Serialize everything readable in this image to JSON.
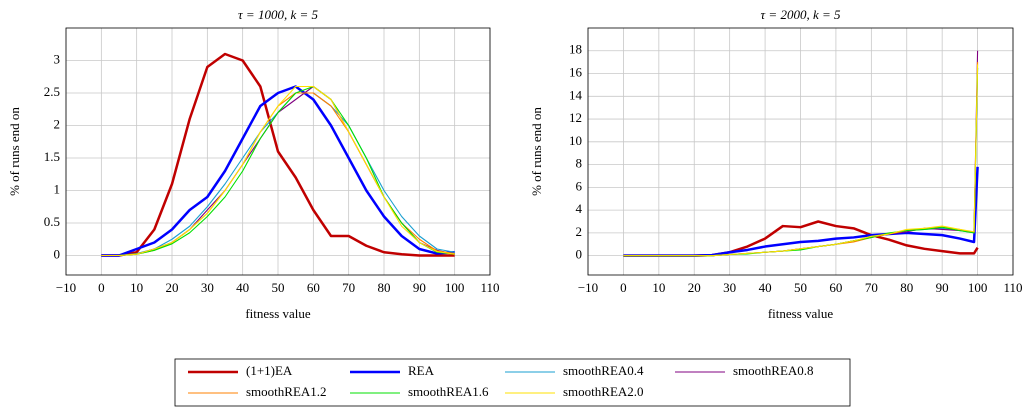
{
  "chart_data": [
    {
      "type": "line",
      "title": "τ = 1000, k = 5",
      "x_label": "fitness value",
      "y_label": "% of runs end on",
      "x": [
        0,
        5,
        10,
        15,
        20,
        25,
        30,
        35,
        40,
        45,
        50,
        55,
        60,
        65,
        70,
        75,
        80,
        85,
        90,
        95,
        100
      ],
      "xlim": [
        -10,
        110
      ],
      "ylim": [
        -0.3,
        3.5
      ],
      "grid": true,
      "xticks": [
        {
          "value": -10,
          "label": "−10"
        },
        0,
        10,
        20,
        30,
        40,
        50,
        60,
        70,
        80,
        90,
        100,
        110
      ],
      "yticks": [
        0,
        0.5,
        1,
        1.5,
        2,
        2.5,
        3
      ],
      "series": [
        {
          "name": "(1+1)EA",
          "color": "#c00000",
          "values": [
            0,
            0,
            0.05,
            0.4,
            1.1,
            2.1,
            2.9,
            3.1,
            3.0,
            2.6,
            1.6,
            1.2,
            0.7,
            0.3,
            0.3,
            0.15,
            0.05,
            0.02,
            0,
            0,
            0
          ]
        },
        {
          "name": "REA",
          "color": "#0000ff",
          "values": [
            0,
            0,
            0.1,
            0.2,
            0.4,
            0.7,
            0.9,
            1.3,
            1.8,
            2.3,
            2.5,
            2.6,
            2.4,
            2.0,
            1.5,
            1.0,
            0.6,
            0.3,
            0.1,
            0.03,
            0.05
          ]
        },
        {
          "name": "smoothREA0.4",
          "color": "#1a9fd0",
          "values": [
            0,
            0,
            0.03,
            0.1,
            0.25,
            0.45,
            0.75,
            1.1,
            1.5,
            1.9,
            2.2,
            2.5,
            2.5,
            2.3,
            2.0,
            1.5,
            1.0,
            0.6,
            0.3,
            0.1,
            0.05
          ]
        },
        {
          "name": "smoothREA0.8",
          "color": "#800080",
          "values": [
            0,
            0,
            0.02,
            0.1,
            0.2,
            0.4,
            0.7,
            1.0,
            1.4,
            1.8,
            2.2,
            2.4,
            2.6,
            2.4,
            1.9,
            1.4,
            0.9,
            0.5,
            0.2,
            0.08,
            0.02
          ]
        },
        {
          "name": "smoothREA1.2",
          "color": "#ff8000",
          "values": [
            0,
            0,
            0.02,
            0.08,
            0.2,
            0.4,
            0.65,
            1.0,
            1.4,
            1.9,
            2.3,
            2.5,
            2.5,
            2.3,
            1.9,
            1.4,
            0.9,
            0.5,
            0.25,
            0.07,
            0.03
          ]
        },
        {
          "name": "smoothREA1.6",
          "color": "#00e000",
          "values": [
            0,
            0,
            0.02,
            0.08,
            0.18,
            0.35,
            0.6,
            0.9,
            1.3,
            1.8,
            2.2,
            2.5,
            2.6,
            2.4,
            2.0,
            1.5,
            0.9,
            0.5,
            0.2,
            0.05,
            0.02
          ]
        },
        {
          "name": "smoothREA2.0",
          "color": "#ffe000",
          "values": [
            0,
            0,
            0.02,
            0.1,
            0.2,
            0.4,
            0.65,
            1.0,
            1.4,
            1.9,
            2.3,
            2.6,
            2.6,
            2.4,
            1.9,
            1.4,
            0.9,
            0.45,
            0.2,
            0.06,
            0.02
          ]
        }
      ]
    },
    {
      "type": "line",
      "title": "τ = 2000, k = 5",
      "x_label": "fitness value",
      "y_label": "% of runs end on",
      "x": [
        0,
        5,
        10,
        15,
        20,
        25,
        30,
        35,
        40,
        45,
        50,
        55,
        60,
        65,
        70,
        75,
        80,
        85,
        90,
        95,
        99,
        100
      ],
      "xlim": [
        -10,
        110
      ],
      "ylim": [
        -1.7,
        20
      ],
      "grid": true,
      "xticks": [
        {
          "value": -10,
          "label": "−10"
        },
        0,
        10,
        20,
        30,
        40,
        50,
        60,
        70,
        80,
        90,
        100,
        110
      ],
      "yticks": [
        0,
        2,
        4,
        6,
        8,
        10,
        12,
        14,
        16,
        18
      ],
      "series": [
        {
          "color": "#c00000",
          "values": [
            0,
            0,
            0,
            0,
            0,
            0.05,
            0.3,
            0.8,
            1.5,
            2.6,
            2.5,
            3.0,
            2.6,
            2.4,
            1.8,
            1.4,
            0.9,
            0.6,
            0.4,
            0.2,
            0.2,
            0.7
          ]
        },
        {
          "color": "#0000ff",
          "values": [
            0,
            0,
            0,
            0,
            0,
            0.05,
            0.3,
            0.5,
            0.8,
            1.0,
            1.2,
            1.3,
            1.5,
            1.6,
            1.8,
            1.9,
            2.0,
            1.9,
            1.8,
            1.5,
            1.2,
            7.8
          ]
        },
        {
          "color": "#1a9fd0",
          "values": [
            0,
            0,
            0,
            0,
            0,
            0,
            0.1,
            0.2,
            0.3,
            0.4,
            0.6,
            0.8,
            1.0,
            1.3,
            1.6,
            1.9,
            2.2,
            2.3,
            2.4,
            2.2,
            2.0,
            16.5
          ]
        },
        {
          "color": "#800080",
          "values": [
            0,
            0,
            0,
            0,
            0,
            0,
            0.1,
            0.2,
            0.3,
            0.4,
            0.6,
            0.8,
            1.0,
            1.3,
            1.6,
            1.9,
            2.1,
            2.4,
            2.3,
            2.2,
            2.1,
            18
          ]
        },
        {
          "color": "#ff8000",
          "values": [
            0,
            0,
            0,
            0,
            0,
            0,
            0.1,
            0.2,
            0.3,
            0.4,
            0.6,
            0.8,
            1.0,
            1.2,
            1.6,
            1.9,
            2.2,
            2.4,
            2.5,
            2.3,
            2.0,
            17
          ]
        },
        {
          "color": "#00e000",
          "values": [
            0,
            0,
            0,
            0,
            0,
            0,
            0.1,
            0.15,
            0.3,
            0.4,
            0.5,
            0.8,
            1.0,
            1.3,
            1.6,
            2.0,
            2.2,
            2.3,
            2.5,
            2.2,
            2.0,
            16.5
          ]
        },
        {
          "color": "#ffe000",
          "values": [
            0,
            0,
            0,
            0,
            0,
            0,
            0.1,
            0.2,
            0.3,
            0.4,
            0.6,
            0.8,
            1.0,
            1.3,
            1.7,
            1.9,
            2.3,
            2.4,
            2.6,
            2.3,
            2.1,
            16.8
          ]
        }
      ]
    }
  ]
}
